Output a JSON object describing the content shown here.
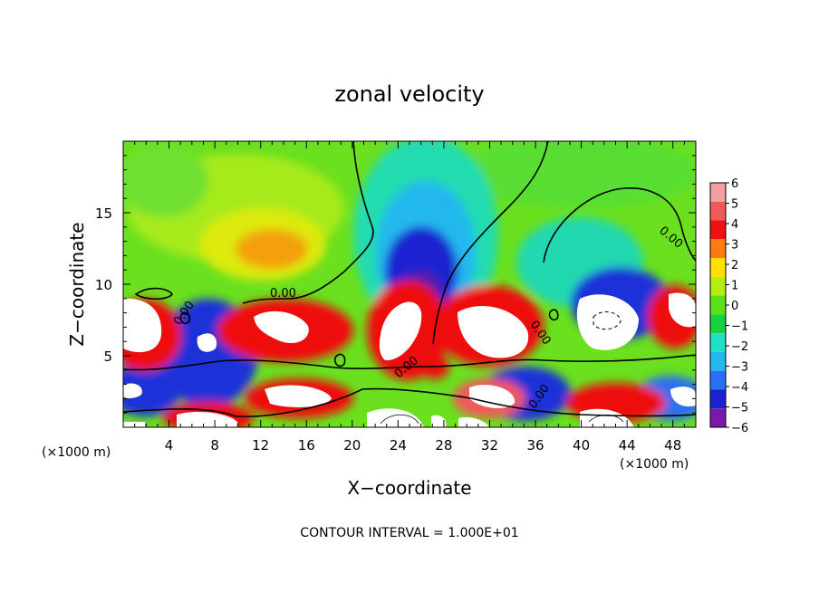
{
  "chart_data": {
    "type": "heatmap",
    "title": "zonal velocity",
    "xlabel": "X−coordinate",
    "ylabel": "Z−coordinate",
    "x_unit_left": "(×1000 m)",
    "x_unit_right": "(×1000 m)",
    "xlim": [
      0,
      50
    ],
    "ylim": [
      0,
      20
    ],
    "x_ticks": [
      4,
      8,
      12,
      16,
      20,
      24,
      28,
      32,
      36,
      40,
      44,
      48
    ],
    "y_ticks": [
      5,
      10,
      15
    ],
    "colorbar": {
      "levels": [
        6,
        5,
        4,
        3,
        2,
        1,
        0,
        -1,
        -2,
        -3,
        -4,
        -5,
        -6
      ],
      "colors": [
        "#f4a0a0",
        "#f05a5a",
        "#ee1111",
        "#ff7a10",
        "#ffe000",
        "#b4ee10",
        "#5ce01a",
        "#18d040",
        "#22e0c8",
        "#22b8ee",
        "#2a70f0",
        "#1a22d0",
        "#7a1aaa"
      ]
    },
    "contour_label": "0.00",
    "footer": "CONTOUR INTERVAL = 1.000E+01"
  }
}
